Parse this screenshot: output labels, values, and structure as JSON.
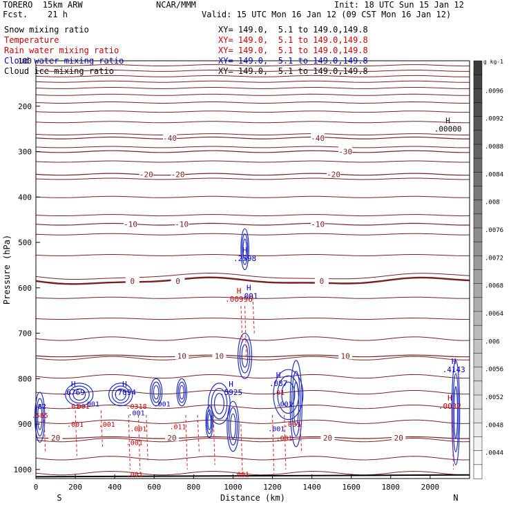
{
  "header": {
    "model": "TORERO  15km ARW",
    "fcst": "Fcst.    21 h",
    "center": "NCAR/MMM",
    "init": "Init: 18 UTC Sun 15 Jan 12",
    "valid": "Valid: 15 UTC Mon 16 Jan 12 (09 CST Mon 16 Jan 12)"
  },
  "legend": [
    {
      "label": "Snow mixing ratio",
      "xy": "XY= 149.0,  5.1 to 149.0,149.8",
      "color": "#000000"
    },
    {
      "label": "Temperature",
      "xy": "XY= 149.0,  5.1 to 149.0,149.8",
      "color": "#cc0000"
    },
    {
      "label": "Rain water mixing ratio",
      "xy": "XY= 149.0,  5.1 to 149.0,149.8",
      "color": "#cc0000"
    },
    {
      "label": "Cloud water mixing ratio",
      "xy": "XY= 149.0,  5.1 to 149.0,149.8",
      "color": "#0000cc"
    },
    {
      "label": "Cloud ice mixing ratio",
      "xy": "XY= 149.0,  5.1 to 149.0,149.8",
      "color": "#000000"
    }
  ],
  "chart_data": {
    "type": "cross-section contour",
    "xlabel": "Distance (km)",
    "ylabel": "Pressure (hPa)",
    "xlim": [
      0,
      2200
    ],
    "ylim": [
      100,
      1020
    ],
    "xticks": [
      0,
      200,
      400,
      600,
      800,
      1000,
      1200,
      1400,
      1600,
      1800,
      2000
    ],
    "yticks": [
      100,
      200,
      300,
      400,
      500,
      600,
      700,
      800,
      900,
      1000
    ],
    "x_end_labels": {
      "left": "S",
      "right": "N"
    },
    "colorbar": {
      "unit": "g kg-1",
      "ticks": [
        ".0096",
        ".0092",
        ".0088",
        ".0084",
        ".008",
        ".0076",
        ".0072",
        ".0068",
        ".0064",
        ".006",
        ".0056",
        ".0052",
        ".0048",
        ".0044"
      ],
      "levels": [
        0.01,
        0.0098,
        0.0096,
        0.0094,
        0.0092,
        0.009,
        0.0088,
        0.0086,
        0.0084,
        0.0082,
        0.008,
        0.0078,
        0.0076,
        0.0074,
        0.0072,
        0.007,
        0.0068,
        0.0066,
        0.0064,
        0.0062,
        0.006,
        0.0058,
        0.0056,
        0.0054,
        0.0052,
        0.005,
        0.0048,
        0.0046,
        0.0044,
        0.0042
      ]
    },
    "temperature_contours": [
      {
        "value": -40,
        "p": 270,
        "labels": [
          {
            "x": 680,
            "text": "-40"
          },
          {
            "x": 1430,
            "text": "-40"
          }
        ]
      },
      {
        "value": -30,
        "p": 300,
        "labels": [
          {
            "x": 1570,
            "text": "-30"
          }
        ]
      },
      {
        "value": -20,
        "p": 350,
        "labels": [
          {
            "x": 560,
            "text": "-20"
          },
          {
            "x": 720,
            "text": "-20"
          },
          {
            "x": 1510,
            "text": "-20"
          }
        ]
      },
      {
        "value": -10,
        "p": 460,
        "labels": [
          {
            "x": 480,
            "text": "-10"
          },
          {
            "x": 740,
            "text": "-10"
          },
          {
            "x": 1430,
            "text": "-10"
          }
        ]
      },
      {
        "value": 0,
        "p": 585,
        "labels": [
          {
            "x": 490,
            "text": "0"
          },
          {
            "x": 720,
            "text": "0"
          },
          {
            "x": 1450,
            "text": "0"
          }
        ]
      },
      {
        "value": 10,
        "p": 750,
        "labels": [
          {
            "x": 740,
            "text": "10"
          },
          {
            "x": 930,
            "text": "10"
          },
          {
            "x": 1570,
            "text": "10"
          }
        ]
      },
      {
        "value": 20,
        "p": 930,
        "labels": [
          {
            "x": 100,
            "text": "20"
          },
          {
            "x": 690,
            "text": "20"
          },
          {
            "x": 1480,
            "text": "20"
          },
          {
            "x": 1840,
            "text": "20"
          }
        ]
      }
    ],
    "extrema_labels": [
      {
        "type": "H",
        "x": 1060,
        "p": 535,
        "value": ".2598",
        "color": "#0000cc"
      },
      {
        "type": "H",
        "x": 1030,
        "p": 625,
        "value": ".00996",
        "color": "#cc0000"
      },
      {
        "type": "H",
        "x": 1080,
        "p": 618,
        "value": ".001",
        "color": "#0000cc"
      },
      {
        "type": "H",
        "x": 190,
        "p": 830,
        "value": ".6769",
        "color": "#0000cc"
      },
      {
        "type": "H",
        "x": 450,
        "p": 830,
        "value": ".7094",
        "color": "#0000cc"
      },
      {
        "type": "H",
        "x": 990,
        "p": 830,
        "value": ".5925",
        "color": "#0000cc"
      },
      {
        "type": "H",
        "x": 1230,
        "p": 810,
        "value": ".087",
        "color": "#0000cc"
      },
      {
        "type": "H",
        "x": 2120,
        "p": 780,
        "value": ".4143",
        "color": "#0000cc"
      },
      {
        "type": "H",
        "x": 2090,
        "p": 250,
        "value": ".00000",
        "color": "#000000"
      },
      {
        "type": "H",
        "x": 2100,
        "p": 860,
        "value": ".0032",
        "color": "#cc0000"
      }
    ],
    "small_labels": [
      {
        "x": 20,
        "p": 860,
        "text": ".82",
        "color": "#0000cc"
      },
      {
        "x": 20,
        "p": 880,
        "text": ".585",
        "color": "#cc0000"
      },
      {
        "x": 190,
        "p": 860,
        "text": ".01",
        "color": "#cc0000"
      },
      {
        "x": 230,
        "p": 860,
        "text": ".001",
        "color": "#cc0000"
      },
      {
        "x": 200,
        "p": 900,
        "text": ".001",
        "color": "#cc0000"
      },
      {
        "x": 360,
        "p": 900,
        "text": ".001",
        "color": "#cc0000"
      },
      {
        "x": 510,
        "p": 860,
        "text": ".0318",
        "color": "#cc0000"
      },
      {
        "x": 510,
        "p": 875,
        "text": ".001",
        "color": "#0000cc"
      },
      {
        "x": 640,
        "p": 855,
        "text": ".001",
        "color": "#0000cc"
      },
      {
        "x": 720,
        "p": 905,
        "text": ".011",
        "color": "#cc0000"
      },
      {
        "x": 1230,
        "p": 830,
        "text": ".01",
        "color": "#cc0000"
      },
      {
        "x": 1260,
        "p": 855,
        "text": ".001",
        "color": "#0000cc"
      },
      {
        "x": 1220,
        "p": 910,
        "text": ".001",
        "color": "#0000cc"
      },
      {
        "x": 1260,
        "p": 930,
        "text": ".001",
        "color": "#cc0000"
      },
      {
        "x": 1300,
        "p": 900,
        "text": ".001",
        "color": "#cc0000"
      },
      {
        "x": 500,
        "p": 1010,
        "text": ".001",
        "color": "#cc0000"
      },
      {
        "x": 1040,
        "p": 1010,
        "text": ".001",
        "color": "#cc0000"
      },
      {
        "x": 500,
        "p": 940,
        "text": ".001",
        "color": "#cc0000"
      },
      {
        "x": 520,
        "p": 910,
        "text": ".001",
        "color": "#cc0000"
      },
      {
        "x": 280,
        "p": 855,
        "text": ".001",
        "color": "#0000cc"
      }
    ]
  }
}
